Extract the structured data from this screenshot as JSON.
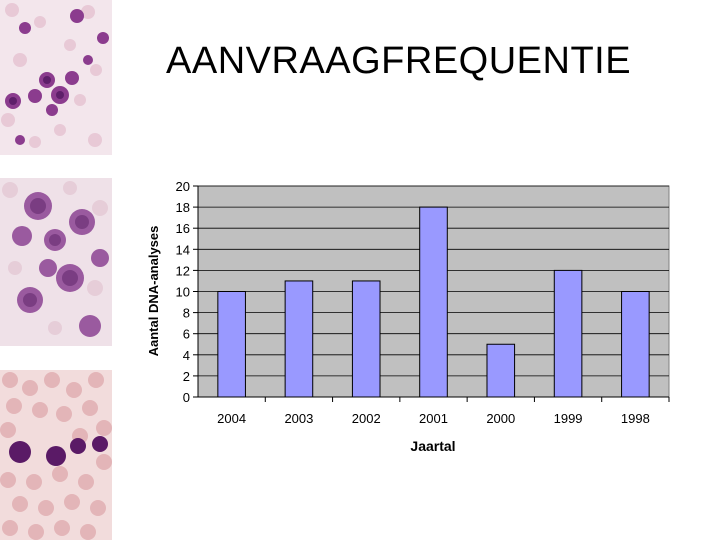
{
  "slide": {
    "title": "AANVRAAGFREQUENTIE"
  },
  "colors": {
    "bar": "#9999ff",
    "plot_background": "#c0c0c0",
    "gridline": "#000000",
    "cell_purple": "#7a2a7c",
    "cell_pink": "#e9c3c9"
  },
  "side_images": [
    {
      "name": "bone-marrow-smear-image",
      "kind": "microscopy"
    },
    {
      "name": "blast-cells-smear-image",
      "kind": "microscopy"
    },
    {
      "name": "blood-smear-image",
      "kind": "microscopy"
    }
  ],
  "chart_data": {
    "type": "bar",
    "categories": [
      "2004",
      "2003",
      "2002",
      "2001",
      "2000",
      "1999",
      "1998"
    ],
    "values": [
      10,
      11,
      11,
      18,
      5,
      12,
      10
    ],
    "xlabel": "Jaartal",
    "ylabel": "Aantal DNA-analyses",
    "ylim": [
      0,
      20
    ],
    "yticks": [
      0,
      2,
      4,
      6,
      8,
      10,
      12,
      14,
      16,
      18,
      20
    ],
    "grid": true,
    "legend": "none"
  }
}
